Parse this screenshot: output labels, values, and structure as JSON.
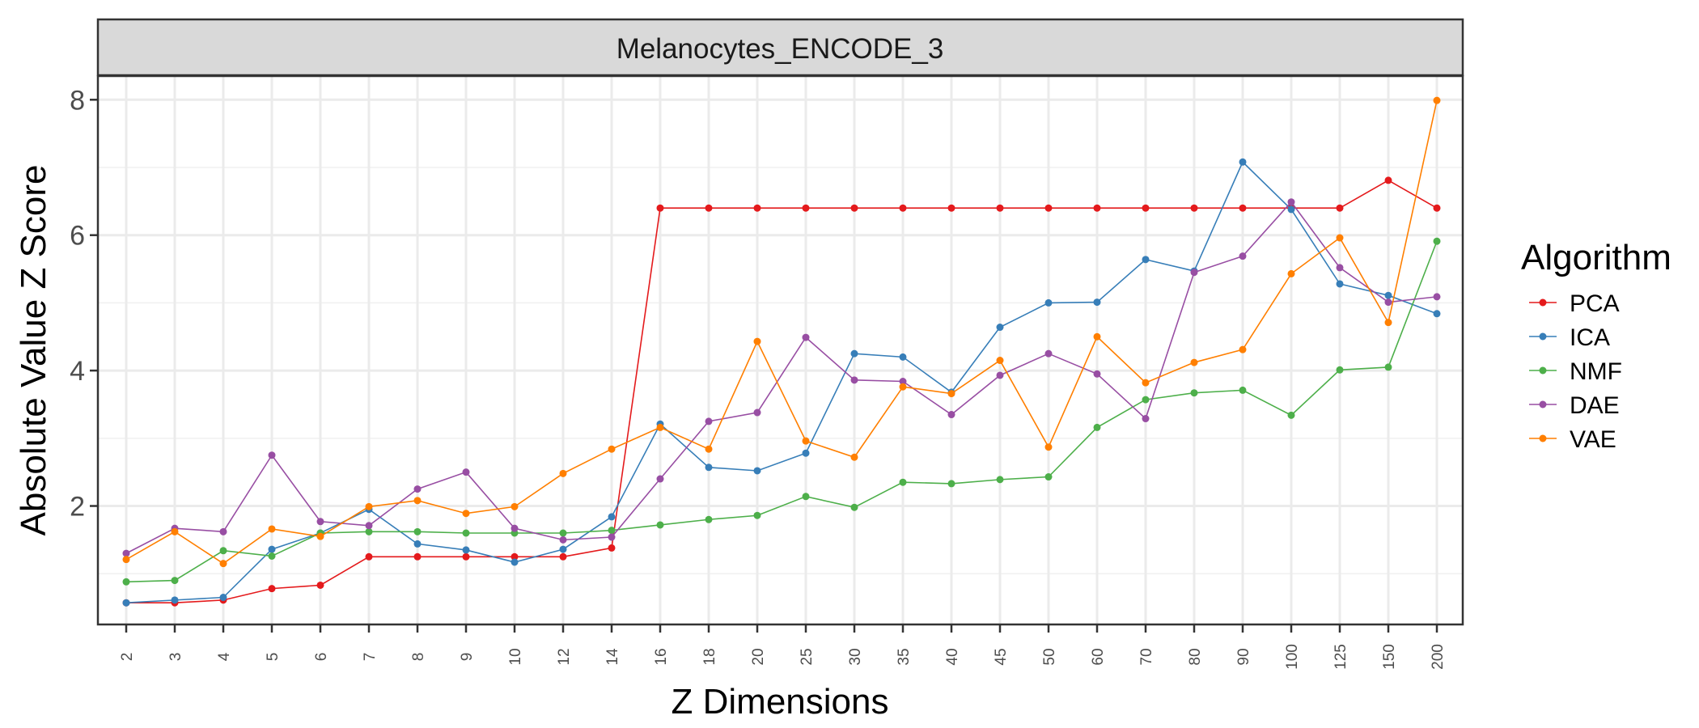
{
  "chart_data": {
    "type": "line",
    "title": "",
    "facet_label": "Melanocytes_ENCODE_3",
    "xlabel": "Z Dimensions",
    "ylabel": "Absolute Value Z Score",
    "x_categories": [
      "2",
      "3",
      "4",
      "5",
      "6",
      "7",
      "8",
      "9",
      "10",
      "12",
      "14",
      "16",
      "18",
      "20",
      "25",
      "30",
      "35",
      "40",
      "45",
      "50",
      "60",
      "70",
      "80",
      "90",
      "100",
      "125",
      "150",
      "200"
    ],
    "y_ticks": [
      2,
      4,
      6,
      8
    ],
    "ylim": [
      0.25,
      8.35
    ],
    "grid": true,
    "legend": {
      "title": "Algorithm",
      "position": "right"
    },
    "series": [
      {
        "name": "PCA",
        "color": "#e41a1c",
        "values": [
          0.57,
          0.57,
          0.61,
          0.78,
          0.83,
          1.25,
          1.25,
          1.25,
          1.25,
          1.25,
          1.38,
          6.4,
          6.4,
          6.4,
          6.4,
          6.4,
          6.4,
          6.4,
          6.4,
          6.4,
          6.4,
          6.4,
          6.4,
          6.4,
          6.4,
          6.4,
          6.81,
          6.4
        ]
      },
      {
        "name": "ICA",
        "color": "#377eb8",
        "values": [
          0.57,
          0.61,
          0.65,
          1.36,
          1.6,
          1.95,
          1.44,
          1.35,
          1.17,
          1.36,
          1.84,
          3.21,
          2.57,
          2.52,
          2.78,
          4.25,
          4.2,
          3.68,
          4.64,
          5.0,
          5.01,
          5.64,
          5.47,
          7.08,
          6.38,
          5.28,
          5.11,
          4.84
        ]
      },
      {
        "name": "NMF",
        "color": "#4daf4a",
        "values": [
          0.88,
          0.9,
          1.34,
          1.26,
          1.6,
          1.62,
          1.62,
          1.6,
          1.6,
          1.6,
          1.64,
          1.72,
          1.8,
          1.86,
          2.14,
          1.98,
          2.35,
          2.33,
          2.39,
          2.43,
          3.16,
          3.57,
          3.67,
          3.71,
          3.34,
          4.01,
          4.05,
          5.91
        ]
      },
      {
        "name": "DAE",
        "color": "#984ea3",
        "values": [
          1.3,
          1.67,
          1.62,
          2.75,
          1.77,
          1.71,
          2.25,
          2.5,
          1.67,
          1.5,
          1.54,
          2.4,
          3.25,
          3.38,
          4.49,
          3.86,
          3.84,
          3.35,
          3.93,
          4.25,
          3.95,
          3.29,
          5.45,
          5.69,
          6.49,
          5.52,
          5.01,
          5.09
        ]
      },
      {
        "name": "VAE",
        "color": "#ff7f00",
        "values": [
          1.21,
          1.62,
          1.15,
          1.66,
          1.55,
          1.99,
          2.08,
          1.89,
          1.99,
          2.48,
          2.84,
          3.16,
          2.84,
          4.43,
          2.96,
          2.72,
          3.76,
          3.66,
          4.15,
          2.87,
          4.5,
          3.82,
          4.12,
          4.31,
          5.43,
          5.96,
          4.71,
          7.99
        ]
      }
    ]
  }
}
